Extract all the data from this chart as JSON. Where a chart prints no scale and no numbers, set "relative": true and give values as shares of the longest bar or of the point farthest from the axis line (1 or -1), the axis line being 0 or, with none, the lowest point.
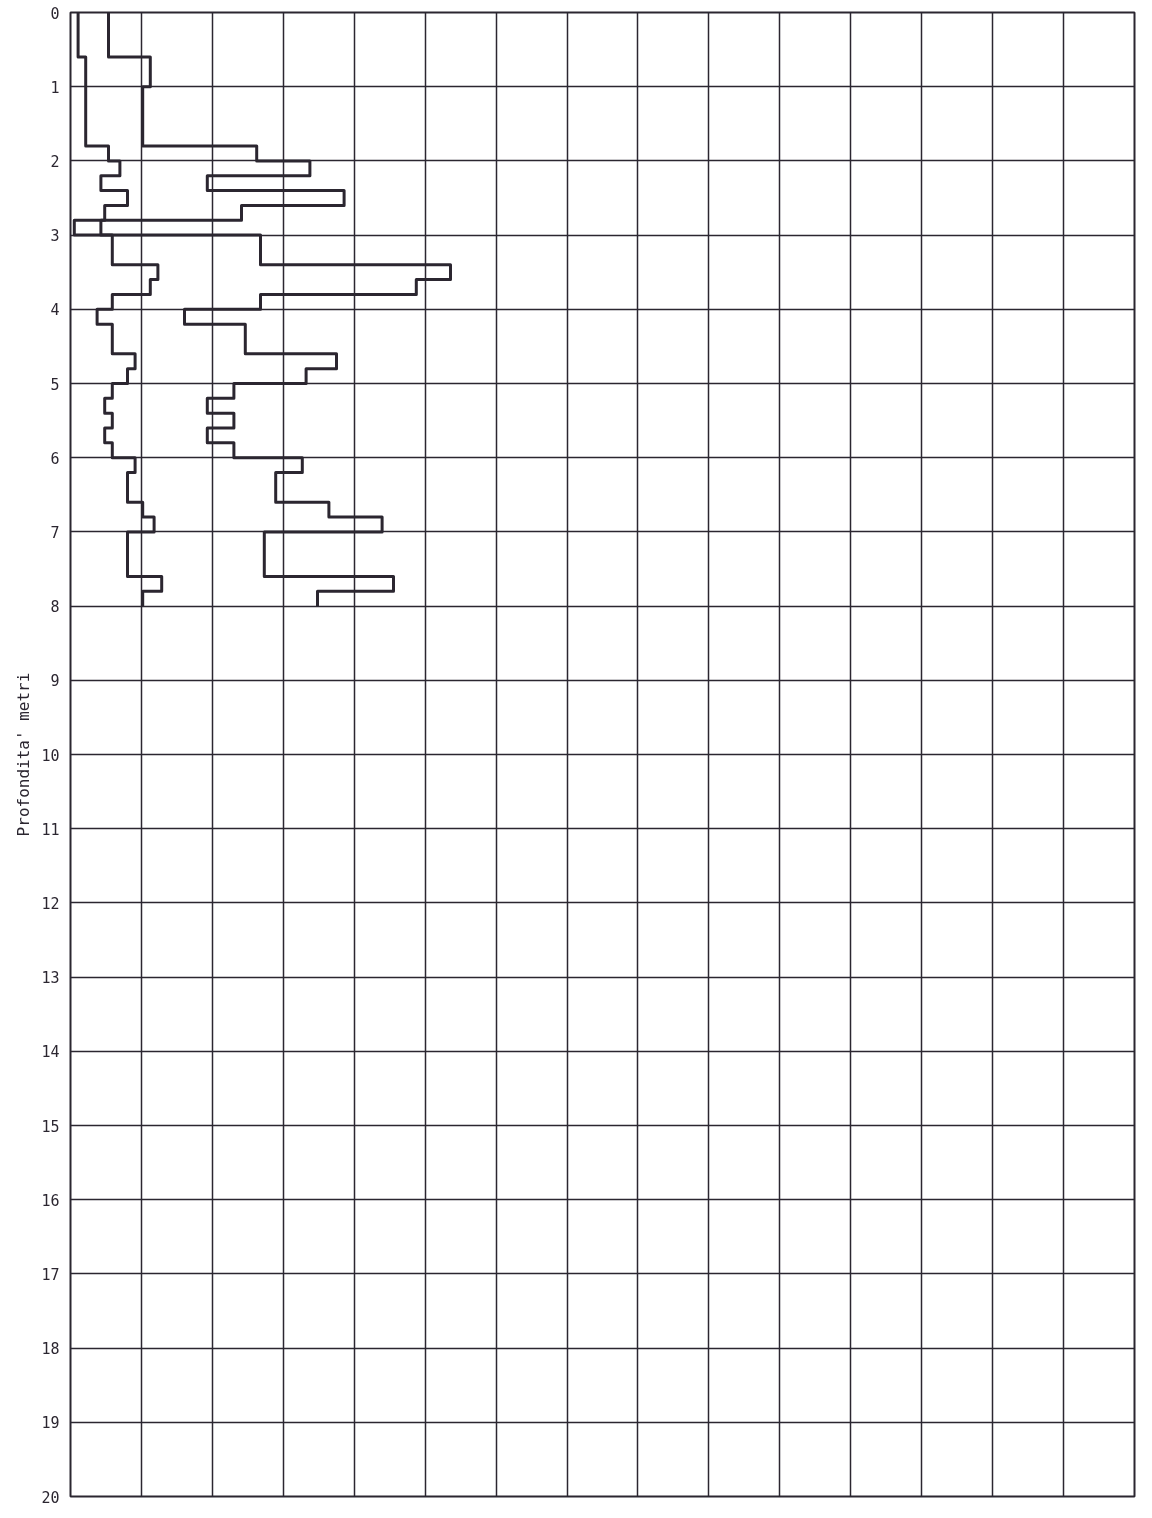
{
  "chart_data": {
    "type": "step",
    "orientation": "horizontal",
    "relative": true,
    "ylabel": "Profondita' metri",
    "ylim": [
      20,
      0
    ],
    "yticks": [
      0,
      1,
      2,
      3,
      4,
      5,
      6,
      7,
      8,
      9,
      10,
      11,
      12,
      13,
      14,
      15,
      16,
      17,
      18,
      19,
      20
    ],
    "grid": true,
    "line_style": "solid",
    "x": [
      0,
      0.6,
      1.0,
      1.8,
      2.0,
      2.2,
      2.4,
      2.6,
      2.8,
      3.0,
      3.4,
      3.6,
      3.8,
      4.0,
      4.2,
      4.6,
      4.8,
      5.0,
      5.2,
      5.4,
      5.6,
      5.8,
      6.0,
      6.2,
      6.6,
      6.8,
      7.0,
      7.6,
      7.8,
      8.0
    ],
    "series": [
      {
        "color": "#2b2630",
        "values": [
          0.02,
          0.04,
          0.04,
          0.1,
          0.13,
          0.08,
          0.15,
          0.09,
          0.01,
          0.11,
          0.23,
          0.21,
          0.11,
          0.07,
          0.11,
          0.17,
          0.15,
          0.11,
          0.09,
          0.11,
          0.09,
          0.11,
          0.17,
          0.15,
          0.19,
          0.22,
          0.15,
          0.24,
          0.19,
          0.19
        ]
      },
      {
        "color": "#2b2630",
        "values": [
          0.1,
          0.21,
          0.19,
          0.49,
          0.63,
          0.36,
          0.72,
          0.45,
          0.08,
          0.5,
          1,
          0.91,
          0.5,
          0.3,
          0.46,
          0.7,
          0.62,
          0.43,
          0.36,
          0.43,
          0.36,
          0.43,
          0.61,
          0.54,
          0.68,
          0.82,
          0.51,
          0.85,
          0.65,
          0.65
        ]
      }
    ]
  }
}
